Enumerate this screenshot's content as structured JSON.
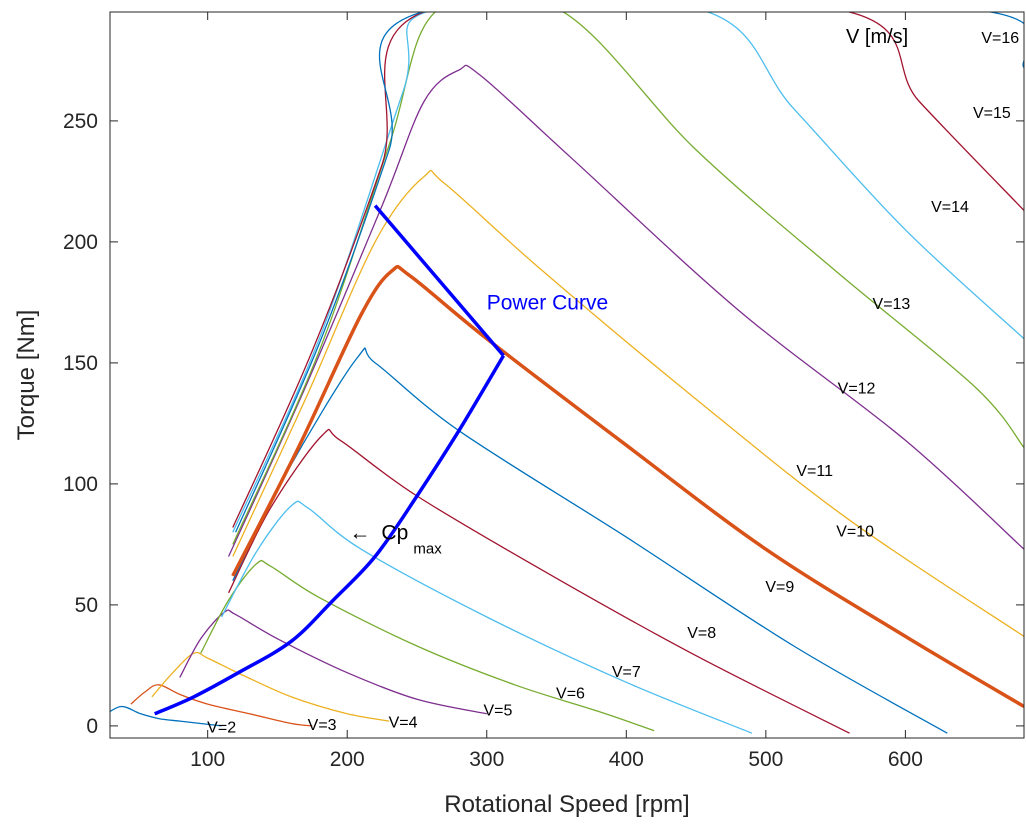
{
  "chart_data": {
    "type": "line",
    "title": "",
    "xlabel": "Rotational Speed [rpm]",
    "ylabel": "Torque [Nm]",
    "xlim": [
      30,
      685
    ],
    "ylim": [
      -5,
      295
    ],
    "x_ticks": [
      100,
      200,
      300,
      400,
      500,
      600
    ],
    "y_ticks": [
      0,
      50,
      100,
      150,
      200,
      250
    ],
    "grid": false,
    "legend_title": "V [m/s]",
    "series": [
      {
        "name": "V=2",
        "color": "#0072BD",
        "points": [
          [
            25,
            4
          ],
          [
            38,
            8
          ],
          [
            52,
            5
          ],
          [
            65,
            3
          ],
          [
            80,
            2
          ],
          [
            95,
            1
          ],
          [
            110,
            0
          ]
        ]
      },
      {
        "name": "V=3",
        "color": "#D95319",
        "points": [
          [
            45,
            9
          ],
          [
            55,
            14
          ],
          [
            65,
            17
          ],
          [
            80,
            13
          ],
          [
            100,
            9
          ],
          [
            130,
            5
          ],
          [
            160,
            1
          ],
          [
            175,
            0
          ]
        ]
      },
      {
        "name": "V=4",
        "color": "#EDB120",
        "points": [
          [
            60,
            12
          ],
          [
            75,
            22
          ],
          [
            90,
            30
          ],
          [
            100,
            28
          ],
          [
            125,
            21
          ],
          [
            160,
            12
          ],
          [
            200,
            5
          ],
          [
            230,
            2
          ]
        ]
      },
      {
        "name": "V=5",
        "color": "#7E2F8E",
        "points": [
          [
            80,
            20
          ],
          [
            95,
            36
          ],
          [
            112,
            47
          ],
          [
            120,
            46
          ],
          [
            150,
            36
          ],
          [
            200,
            22
          ],
          [
            250,
            11
          ],
          [
            300,
            5
          ]
        ]
      },
      {
        "name": "V=6",
        "color": "#77AC30",
        "points": [
          [
            95,
            30
          ],
          [
            115,
            52
          ],
          [
            135,
            67
          ],
          [
            145,
            66
          ],
          [
            180,
            53
          ],
          [
            250,
            33
          ],
          [
            320,
            17
          ],
          [
            380,
            6
          ],
          [
            420,
            -2
          ]
        ]
      },
      {
        "name": "V=7",
        "color": "#4DBEEE",
        "points": [
          [
            110,
            45
          ],
          [
            135,
            72
          ],
          [
            160,
            91
          ],
          [
            172,
            90
          ],
          [
            210,
            73
          ],
          [
            300,
            45
          ],
          [
            400,
            18
          ],
          [
            490,
            -3
          ]
        ]
      },
      {
        "name": "V=8",
        "color": "#A2142F",
        "points": [
          [
            115,
            55
          ],
          [
            145,
            90
          ],
          [
            182,
            120
          ],
          [
            195,
            118
          ],
          [
            250,
            95
          ],
          [
            350,
            61
          ],
          [
            450,
            29
          ],
          [
            560,
            -3
          ]
        ]
      },
      {
        "name": "V=9",
        "color": "#0072BD",
        "points": [
          [
            118,
            60
          ],
          [
            155,
            103
          ],
          [
            207,
            152
          ],
          [
            220,
            150
          ],
          [
            280,
            122
          ],
          [
            400,
            78
          ],
          [
            520,
            33
          ],
          [
            630,
            -3
          ]
        ]
      },
      {
        "name": "V=10",
        "color": "#D95319",
        "bold": true,
        "points": [
          [
            118,
            62
          ],
          [
            165,
            115
          ],
          [
            210,
            170
          ],
          [
            232,
            188
          ],
          [
            245,
            186
          ],
          [
            300,
            160
          ],
          [
            400,
            116
          ],
          [
            500,
            73
          ],
          [
            600,
            37
          ],
          [
            685,
            8
          ]
        ]
      },
      {
        "name": "V=11",
        "color": "#EDB120",
        "points": [
          [
            118,
            70
          ],
          [
            170,
            135
          ],
          [
            220,
            200
          ],
          [
            255,
            227
          ],
          [
            270,
            224
          ],
          [
            340,
            188
          ],
          [
            450,
            135
          ],
          [
            560,
            85
          ],
          [
            685,
            37
          ]
        ]
      },
      {
        "name": "V=12",
        "color": "#7E2F8E",
        "points": [
          [
            115,
            70
          ],
          [
            170,
            140
          ],
          [
            225,
            215
          ],
          [
            255,
            258
          ],
          [
            280,
            271
          ],
          [
            295,
            269
          ],
          [
            360,
            235
          ],
          [
            480,
            172
          ],
          [
            600,
            118
          ],
          [
            685,
            73
          ]
        ]
      },
      {
        "name": "V=13",
        "color": "#77AC30",
        "points": [
          [
            118,
            75
          ],
          [
            180,
            155
          ],
          [
            230,
            240
          ],
          [
            265,
            296
          ],
          [
            352,
            296
          ],
          [
            450,
            238
          ],
          [
            550,
            188
          ],
          [
            650,
            140
          ],
          [
            685,
            115
          ]
        ]
      },
      {
        "name": "V=14",
        "color": "#4DBEEE",
        "points": [
          [
            118,
            80
          ],
          [
            180,
            160
          ],
          [
            240,
            262
          ],
          [
            262,
            296
          ],
          [
            453,
            296
          ],
          [
            520,
            255
          ],
          [
            600,
            205
          ],
          [
            685,
            160
          ]
        ]
      },
      {
        "name": "V=15",
        "color": "#A2142F",
        "points": [
          [
            118,
            82
          ],
          [
            175,
            155
          ],
          [
            225,
            232
          ],
          [
            259,
            296
          ],
          [
            552,
            296
          ],
          [
            610,
            258
          ],
          [
            685,
            213
          ]
        ]
      },
      {
        "name": "V=16",
        "color": "#0072BD",
        "points": [
          [
            120,
            80
          ],
          [
            180,
            158
          ],
          [
            230,
            238
          ],
          [
            260,
            296
          ],
          [
            648,
            296
          ],
          [
            685,
            272
          ]
        ]
      }
    ],
    "curve_labels": [
      {
        "text": "V=2",
        "x": 110,
        "y": -1
      },
      {
        "text": "V=3",
        "x": 182,
        "y": 0
      },
      {
        "text": "V=4",
        "x": 240,
        "y": 1
      },
      {
        "text": "V=5",
        "x": 308,
        "y": 6
      },
      {
        "text": "V=6",
        "x": 360,
        "y": 13
      },
      {
        "text": "V=7",
        "x": 400,
        "y": 22
      },
      {
        "text": "V=8",
        "x": 454,
        "y": 38
      },
      {
        "text": "V=9",
        "x": 510,
        "y": 57
      },
      {
        "text": "V=10",
        "x": 564,
        "y": 80
      },
      {
        "text": "V=11",
        "x": 535,
        "y": 105
      },
      {
        "text": "V=12",
        "x": 565,
        "y": 139
      },
      {
        "text": "V=13",
        "x": 590,
        "y": 174
      },
      {
        "text": "V=14",
        "x": 632,
        "y": 214
      },
      {
        "text": "V=15",
        "x": 662,
        "y": 253
      },
      {
        "text": "V=16",
        "x": 668,
        "y": 284
      }
    ],
    "cp_max_curve": {
      "color": "#0000FF",
      "points": [
        [
          62,
          5
        ],
        [
          90,
          12
        ],
        [
          122,
          22
        ],
        [
          160,
          35
        ],
        [
          190,
          52
        ],
        [
          220,
          70
        ],
        [
          250,
          95
        ],
        [
          280,
          122
        ],
        [
          312,
          153
        ]
      ]
    },
    "power_curve": {
      "label": "Power Curve",
      "color": "#0000FF",
      "points": [
        [
          220,
          215
        ],
        [
          312,
          153
        ]
      ],
      "label_x": 300,
      "label_y": 172
    },
    "cp_annotation": {
      "arrow": "←",
      "main": "Cp",
      "sub": "max",
      "x": 203,
      "y": 80
    }
  }
}
